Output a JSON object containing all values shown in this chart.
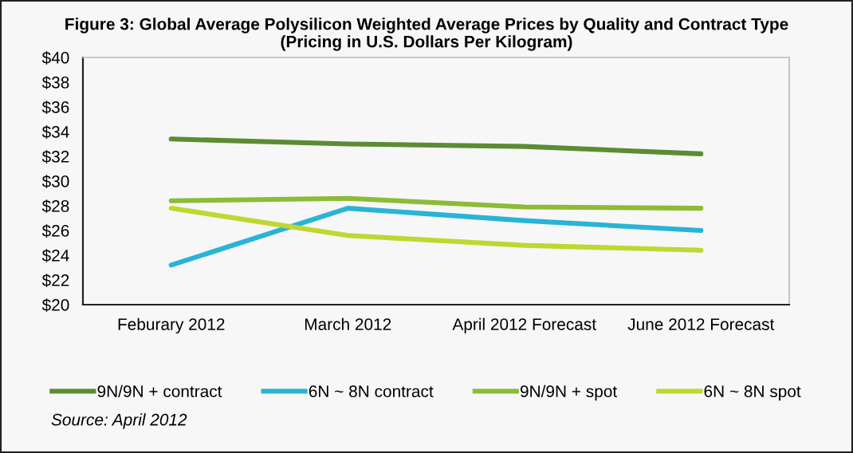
{
  "chart_data": {
    "type": "line",
    "title": "Figure 3: Global Average Polysilicon Weighted Average Prices by Quality and Contract Type",
    "subtitle": "(Pricing in U.S. Dollars Per Kilogram)",
    "categories": [
      "Feburary 2012",
      "March 2012",
      "April 2012 Forecast",
      "June 2012 Forecast"
    ],
    "series": [
      {
        "name": "9N/9N + contract",
        "color": "#5b8c32",
        "values": [
          33.4,
          33.0,
          32.8,
          32.2
        ]
      },
      {
        "name": "6N ~ 8N contract",
        "color": "#29b4d6",
        "values": [
          23.2,
          27.8,
          26.8,
          26.0
        ]
      },
      {
        "name": "9N/9N + spot",
        "color": "#8dbb35",
        "values": [
          28.4,
          28.6,
          27.9,
          27.8
        ]
      },
      {
        "name": "6N ~ 8N spot",
        "color": "#bfd730",
        "values": [
          27.8,
          25.6,
          24.8,
          24.4
        ]
      }
    ],
    "ylim": [
      20,
      40
    ],
    "yticks": [
      {
        "value": 20,
        "label": "$20"
      },
      {
        "value": 22,
        "label": "$22"
      },
      {
        "value": 24,
        "label": "$24"
      },
      {
        "value": 26,
        "label": "$26"
      },
      {
        "value": 28,
        "label": "$28"
      },
      {
        "value": 30,
        "label": "$30"
      },
      {
        "value": 32,
        "label": "$32"
      },
      {
        "value": 34,
        "label": "$34"
      },
      {
        "value": 36,
        "label": "$36"
      },
      {
        "value": 38,
        "label": "$38"
      },
      {
        "value": 40,
        "label": "$40"
      }
    ],
    "grid": false,
    "legend": "bottom",
    "annotations": [
      "Source: April 2012"
    ]
  }
}
